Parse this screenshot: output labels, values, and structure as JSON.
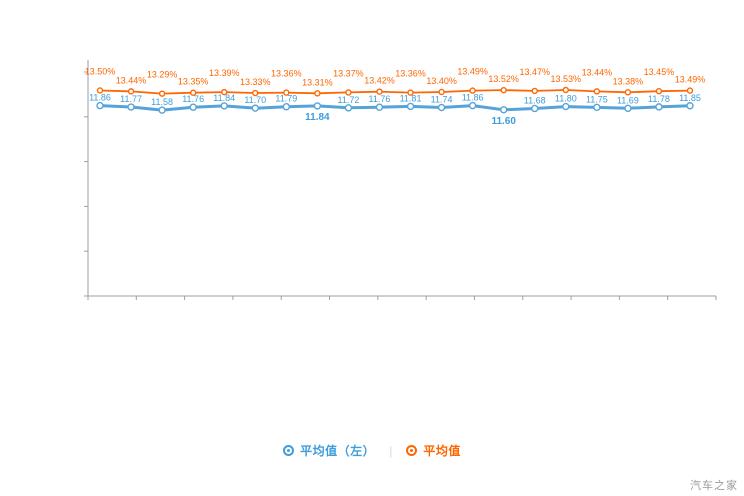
{
  "page": {
    "background_color": "#ffffff"
  },
  "watermark": {
    "text": "汽车之家",
    "color": "#9b9b9b"
  },
  "legend": {
    "divider": "|",
    "items": [
      {
        "id": "blue",
        "label": "平均值（左）",
        "color": "#3e9ddc"
      },
      {
        "id": "orange",
        "label": "平均值",
        "color": "#ff6600"
      }
    ]
  },
  "chart_data": {
    "type": "line",
    "title": "",
    "xlabel": "",
    "ylabel": "",
    "grid": false,
    "dual_axis": true,
    "legend_position": "bottom",
    "x": [
      1,
      2,
      3,
      4,
      5,
      6,
      7,
      8,
      9,
      10,
      11,
      12,
      13,
      14,
      15,
      16,
      17,
      18,
      19,
      20
    ],
    "series": [
      {
        "id": "blue",
        "name": "平均值（左）",
        "color": "#56a3d9",
        "label_color": "#3e9ddc",
        "line_width": 3,
        "marker_radius": 3,
        "axis_range": [
          0,
          14.7
        ],
        "values": [
          11.86,
          11.77,
          11.58,
          11.76,
          11.84,
          11.7,
          11.79,
          11.84,
          11.72,
          11.76,
          11.81,
          11.74,
          11.86,
          11.6,
          11.68,
          11.8,
          11.75,
          11.69,
          11.78,
          11.85
        ],
        "labels": [
          "11.86",
          "11.77",
          "11.58",
          "11.76",
          "11.84",
          "11.70",
          "11.79",
          "11.84",
          "11.72",
          "11.76",
          "11.81",
          "11.74",
          "11.86",
          "11.60",
          "11.68",
          "11.80",
          "11.75",
          "11.69",
          "11.78",
          "11.85"
        ]
      },
      {
        "id": "orange",
        "name": "平均值",
        "color": "#ff6600",
        "label_color": "#ff6600",
        "line_width": 1.8,
        "marker_radius": 2.5,
        "axis_range": [
          0,
          15.5
        ],
        "values": [
          13.5,
          13.44,
          13.29,
          13.35,
          13.39,
          13.33,
          13.36,
          13.31,
          13.37,
          13.42,
          13.36,
          13.4,
          13.49,
          13.52,
          13.47,
          13.53,
          13.44,
          13.38,
          13.45,
          13.49
        ],
        "labels": [
          "13.50%",
          "13.44%",
          "13.29%",
          "13.35%",
          "13.39%",
          "13.33%",
          "13.36%",
          "13.31%",
          "13.37%",
          "13.42%",
          "13.36%",
          "13.40%",
          "13.49%",
          "13.52%",
          "13.47%",
          "13.53%",
          "13.44%",
          "13.38%",
          "13.45%",
          "13.49%"
        ]
      }
    ]
  }
}
